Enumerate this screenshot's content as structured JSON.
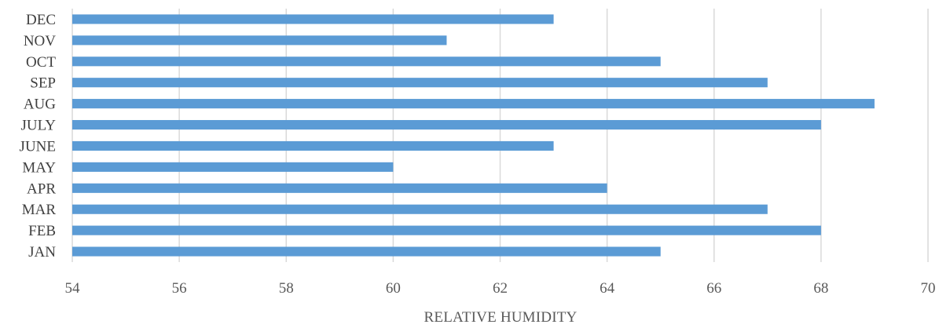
{
  "chart_data": {
    "type": "bar",
    "orientation": "horizontal",
    "categories": [
      "JAN",
      "FEB",
      "MAR",
      "APR",
      "MAY",
      "JUNE",
      "JULY",
      "AUG",
      "SEP",
      "OCT",
      "NOV",
      "DEC"
    ],
    "values": [
      65,
      68,
      67,
      64,
      60,
      63,
      68,
      69,
      67,
      65,
      61,
      63
    ],
    "xlabel": "RELATIVE HUMIDITY",
    "ylabel": "",
    "title": "",
    "xlim": [
      54,
      70
    ],
    "xticks": [
      54,
      56,
      58,
      60,
      62,
      64,
      66,
      68,
      70
    ],
    "grid": true,
    "bar_color": "#5b9bd5",
    "grid_color": "#d9d9d9"
  }
}
